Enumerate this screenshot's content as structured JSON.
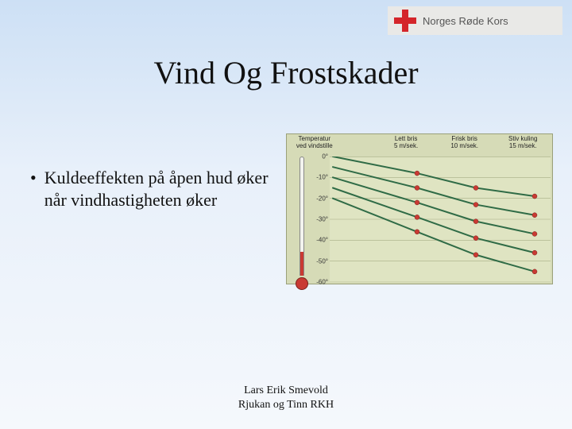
{
  "logo": {
    "org_name": "Norges Røde Kors"
  },
  "title": "Vind Og Frostskader",
  "bullet": {
    "text": "Kuldeeffekten på åpen hud øker når vindhastigheten øker"
  },
  "footer": {
    "line1": "Lars Erik Smevold",
    "line2": "Rjukan og Tinn RKH"
  },
  "chart": {
    "type": "line",
    "background_color": "#d6dbb7",
    "plot_background_color": "#dfe4c2",
    "grid_color": "#a8ae86",
    "line_color": "#2f6b46",
    "line_width": 2,
    "marker_color": "#c93a33",
    "marker_radius": 3,
    "font_family": "Arial",
    "header_fontsize": 8,
    "tick_fontsize": 8,
    "headers": {
      "col0_line1": "Temperatur",
      "col0_line2": "ved vindstille",
      "col2_line1": "Lett bris",
      "col2_line2": "5 m/sek.",
      "col3_line1": "Frisk bris",
      "col3_line2": "10 m/sek.",
      "col4_line1": "Stiv kuling",
      "col4_line2": "15 m/sek."
    },
    "x_categories": [
      "vindstille",
      "5 m/s",
      "10 m/s",
      "15 m/s"
    ],
    "x_positions": [
      0,
      1,
      2,
      3
    ],
    "ylim": [
      -60,
      0
    ],
    "yticks": [
      0,
      -10,
      -20,
      -30,
      -40,
      -50,
      -60
    ],
    "ytick_labels": [
      "0°",
      "-10°",
      "-20°",
      "-30°",
      "-40°",
      "-50°",
      "-60°"
    ],
    "series": [
      {
        "start_temp": 0,
        "values": [
          0,
          -8,
          -15,
          -19
        ]
      },
      {
        "start_temp": -5,
        "values": [
          -5,
          -15,
          -23,
          -28
        ]
      },
      {
        "start_temp": -10,
        "values": [
          -10,
          -22,
          -31,
          -37
        ]
      },
      {
        "start_temp": -15,
        "values": [
          -15,
          -29,
          -39,
          -46
        ]
      },
      {
        "start_temp": -20,
        "values": [
          -20,
          -36,
          -47,
          -55
        ]
      }
    ],
    "thermometer": {
      "bulb_color": "#c93a33",
      "tube_color": "#f3f3ee"
    }
  }
}
